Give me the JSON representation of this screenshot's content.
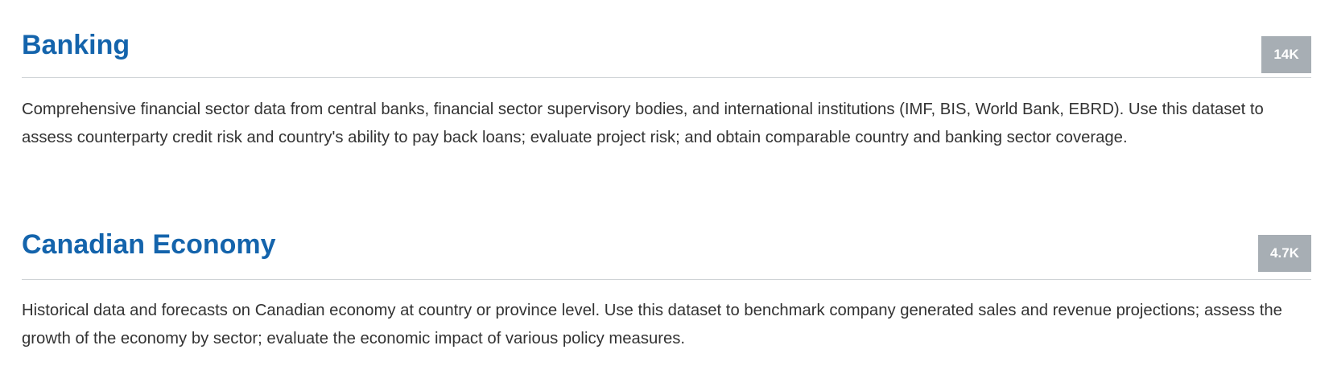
{
  "datasets": [
    {
      "title": "Banking",
      "count": "14K",
      "description": "Comprehensive financial sector data from central banks, financial sector supervisory bodies, and international institutions (IMF, BIS, World Bank, EBRD). Use this dataset to assess counterparty credit risk and country's ability to pay back loans; evaluate project risk; and obtain comparable country and banking sector coverage."
    },
    {
      "title": "Canadian Economy",
      "count": "4.7K",
      "description": "Historical data and forecasts on Canadian economy at country or province level. Use this dataset to benchmark company generated sales and revenue projections; assess the growth of the economy by sector; evaluate the economic impact of various policy measures."
    }
  ],
  "colors": {
    "title": "#1464ac",
    "badge_background": "#a7aeb4",
    "badge_text": "#ffffff",
    "body_text": "#333333",
    "divider": "#cfd3d6"
  }
}
